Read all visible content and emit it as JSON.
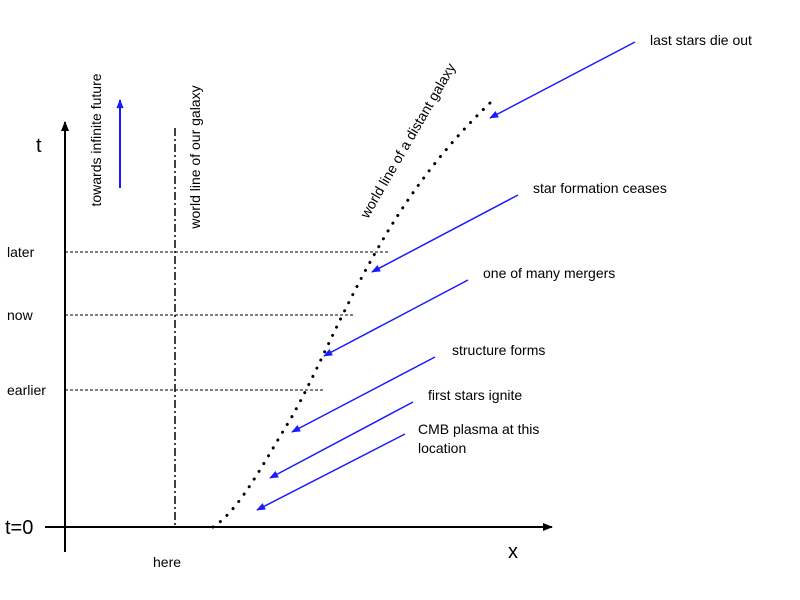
{
  "axes": {
    "t": "t",
    "x": "x",
    "origin": "t=0",
    "here": "here"
  },
  "times": {
    "later": "later",
    "now": "now",
    "earlier": "earlier"
  },
  "labels": {
    "future": "towards infinite future",
    "our_galaxy": "world line of our galaxy",
    "distant_galaxy": "world line of a distant galaxy"
  },
  "events": [
    {
      "lines": [
        "last stars die out"
      ]
    },
    {
      "lines": [
        "star formation ceases"
      ]
    },
    {
      "lines": [
        "one of many mergers"
      ]
    },
    {
      "lines": [
        "structure forms"
      ]
    },
    {
      "lines": [
        "first stars ignite"
      ]
    },
    {
      "lines": [
        "CMB plasma at this",
        "location"
      ]
    }
  ]
}
